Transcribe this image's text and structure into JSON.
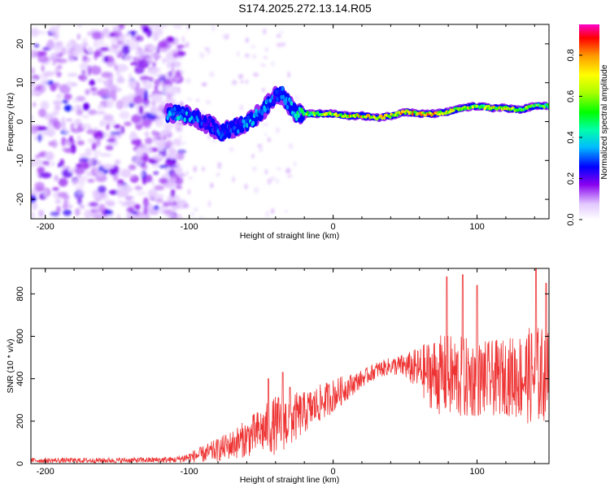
{
  "title": "S174.2025.272.13.14.R05",
  "chart_data": [
    {
      "type": "heatmap",
      "name": "spectrogram",
      "xlabel": "Height of straight line (km)",
      "ylabel": "Frequency (Hz)",
      "xlim": [
        -210,
        150
      ],
      "ylim": [
        -25,
        25
      ],
      "xticks": [
        -200,
        -100,
        0,
        100
      ],
      "yticks": [
        -20,
        -10,
        0,
        10,
        20
      ],
      "colorbar": {
        "label": "Normalized spectral amplitude",
        "range": [
          0,
          0.95
        ],
        "ticks": [
          0.0,
          0.2,
          0.4,
          0.6,
          0.8
        ]
      },
      "noise_region_x": [
        -210,
        -115
      ],
      "signal_track": {
        "x": [
          -115,
          -105,
          -95,
          -85,
          -78,
          -72,
          -65,
          -58,
          -52,
          -46,
          -40,
          -35,
          -30,
          -25,
          -20,
          -10,
          0,
          10,
          20,
          30,
          40,
          50,
          60,
          70,
          80,
          90,
          100,
          110,
          120,
          130,
          140,
          150
        ],
        "freq": [
          2,
          2,
          1,
          -1,
          -3,
          -2,
          -1,
          0,
          2,
          4,
          7,
          7,
          4,
          2,
          2,
          2,
          2,
          1.5,
          1.5,
          1,
          1.5,
          2.5,
          2,
          2,
          2.5,
          3.5,
          4,
          3.5,
          3.5,
          3,
          4,
          4
        ],
        "amplitude": [
          0.3,
          0.35,
          0.3,
          0.25,
          0.3,
          0.25,
          0.3,
          0.35,
          0.3,
          0.35,
          0.25,
          0.3,
          0.35,
          0.45,
          0.5,
          0.6,
          0.65,
          0.75,
          0.7,
          0.75,
          0.7,
          0.75,
          0.7,
          0.75,
          0.7,
          0.65,
          0.6,
          0.65,
          0.7,
          0.6,
          0.55,
          0.5
        ]
      }
    },
    {
      "type": "line",
      "name": "snr",
      "xlabel": "Height of straight line (km)",
      "ylabel": "SNR (10 * v/v)",
      "xlim": [
        -210,
        150
      ],
      "ylim": [
        0,
        920
      ],
      "xticks": [
        -200,
        -100,
        0,
        100
      ],
      "yticks": [
        0,
        200,
        400,
        600,
        800
      ],
      "color": "#ee3333",
      "envelope": {
        "x": [
          -210,
          -150,
          -110,
          -100,
          -90,
          -80,
          -70,
          -60,
          -50,
          -40,
          -30,
          -20,
          -10,
          0,
          10,
          20,
          30,
          40,
          50,
          60,
          70,
          80,
          90,
          100,
          110,
          120,
          130,
          140,
          150
        ],
        "mean": [
          15,
          15,
          18,
          30,
          45,
          65,
          90,
          120,
          155,
          180,
          205,
          240,
          280,
          320,
          360,
          400,
          440,
          460,
          460,
          440,
          420,
          410,
          400,
          400,
          400,
          410,
          410,
          415,
          420
        ],
        "spread": [
          12,
          12,
          15,
          25,
          40,
          55,
          70,
          90,
          110,
          140,
          130,
          100,
          90,
          80,
          60,
          40,
          40,
          40,
          60,
          110,
          180,
          200,
          200,
          180,
          180,
          180,
          210,
          240,
          220
        ]
      },
      "peaks": [
        [
          -45,
          400
        ],
        [
          -35,
          430
        ],
        [
          -30,
          360
        ],
        [
          79,
          880
        ],
        [
          90,
          890
        ],
        [
          100,
          840
        ],
        [
          141,
          920
        ],
        [
          148,
          850
        ]
      ]
    }
  ]
}
